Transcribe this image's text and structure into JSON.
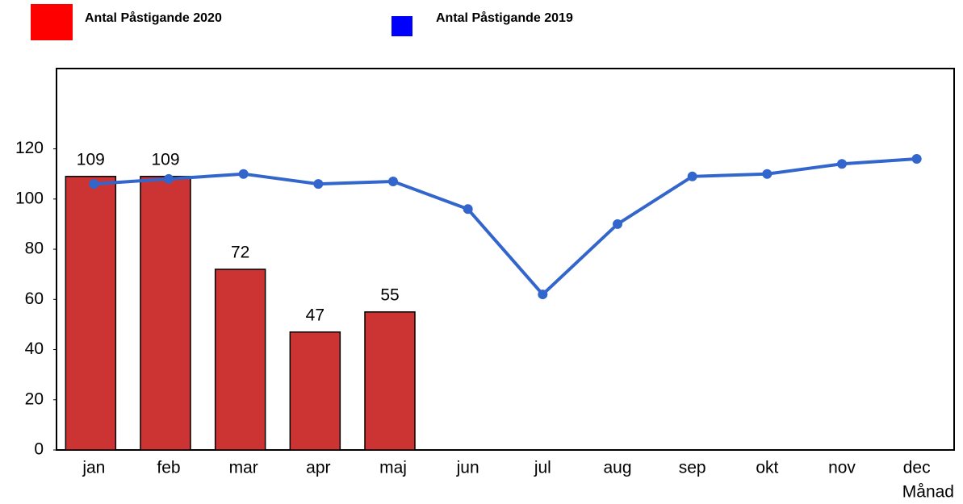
{
  "chart_data": {
    "type": "bar_line",
    "categories": [
      "jan",
      "feb",
      "mar",
      "apr",
      "maj",
      "jun",
      "jul",
      "aug",
      "sep",
      "okt",
      "nov",
      "dec"
    ],
    "x_label": "Månad",
    "series": [
      {
        "name": "Antal Påstigande 2020",
        "kind": "bar",
        "color": "#cc3333",
        "legend_color": "#ff0000",
        "values": [
          109,
          109,
          72,
          47,
          55,
          null,
          null,
          null,
          null,
          null,
          null,
          null
        ]
      },
      {
        "name": "Antal Påstigande 2019",
        "kind": "line",
        "color": "#3366cc",
        "legend_color": "#0000ff",
        "values": [
          106,
          108,
          110,
          106,
          107,
          96,
          62,
          90,
          109,
          110,
          114,
          116
        ]
      }
    ],
    "ylim": [
      0,
      152
    ],
    "yticks": [
      0,
      20,
      40,
      60,
      80,
      100,
      120
    ],
    "grid": false
  }
}
